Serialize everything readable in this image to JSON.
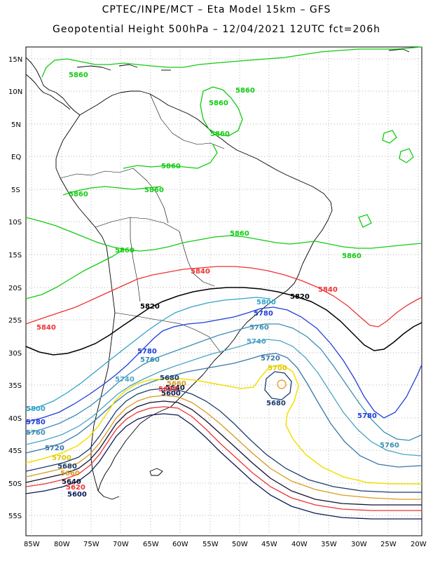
{
  "header": {
    "line1": "CPTEC/INPE/MCT –  Eta Model 15km – GFS",
    "line2": "Geopotential Height 500hPa – 12/04/2021 12UTC fct=206h"
  },
  "axes": {
    "lat_labels": [
      "15N",
      "10N",
      "5N",
      "EQ",
      "5S",
      "10S",
      "15S",
      "20S",
      "25S",
      "30S",
      "35S",
      "40S",
      "45S",
      "50S",
      "55S"
    ],
    "lon_labels": [
      "85W",
      "80W",
      "75W",
      "70W",
      "65W",
      "60W",
      "55W",
      "50W",
      "45W",
      "40W",
      "35W",
      "30W",
      "25W",
      "20W"
    ]
  },
  "colors": {
    "c5860": "#11cc11",
    "c5840": "#ee3333",
    "c5820": "#000000",
    "c5800": "#2fa3c8",
    "c5780": "#1f3fd6",
    "c5760": "#3b8fb3",
    "c5740": "#4aa5c5",
    "c5720": "#3777a8",
    "c5700": "#f2e000",
    "c5680": "#1a3d6e",
    "c5660": "#d99a20",
    "c5640": "#111133",
    "c5620": "#ee3333",
    "c5600": "#0a1a55",
    "c5880": "#e8a030",
    "coast": "#000000"
  },
  "contour_labels": {
    "g5860": "5860",
    "g5840": "5840",
    "g5820": "5820",
    "g5800": "5800",
    "g5780": "5780",
    "g5760": "5760",
    "g5740": "5740",
    "g5720": "5720",
    "g5700": "5700",
    "g5680": "5680",
    "g5660": "5660",
    "g5640": "5640",
    "g5620": "5620",
    "g5600": "5600"
  }
}
